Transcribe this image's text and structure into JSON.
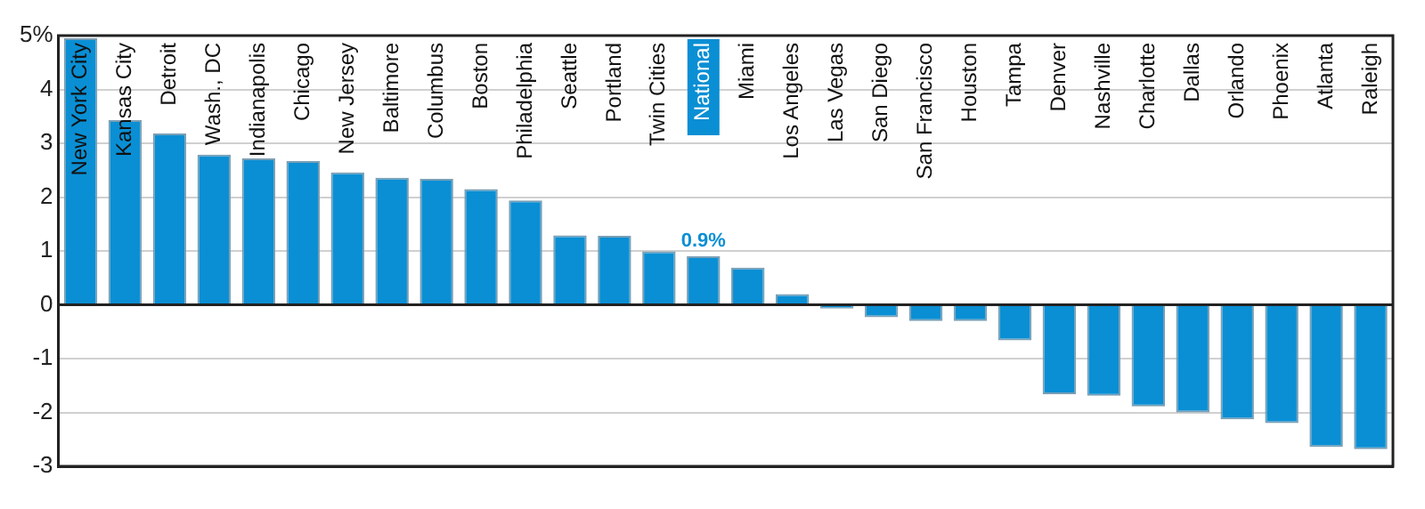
{
  "chart_data": {
    "type": "bar",
    "categories": [
      "New York City",
      "Kansas City",
      "Detroit",
      "Wash., DC",
      "Indianapolis",
      "Chicago",
      "New Jersey",
      "Baltimore",
      "Columbus",
      "Boston",
      "Philadelphia",
      "Seattle",
      "Portland",
      "Twin Cities",
      "National",
      "Miami",
      "Los Angeles",
      "Las Vegas",
      "San Diego",
      "San Francisco",
      "Houston",
      "Tampa",
      "Denver",
      "Nashville",
      "Charlotte",
      "Dallas",
      "Orlando",
      "Phoenix",
      "Atlanta",
      "Raleigh"
    ],
    "values": [
      4.95,
      3.43,
      3.18,
      2.79,
      2.72,
      2.67,
      2.46,
      2.36,
      2.34,
      2.15,
      1.94,
      1.29,
      1.28,
      0.99,
      0.9,
      0.69,
      0.2,
      -0.07,
      -0.23,
      -0.3,
      -0.3,
      -0.66,
      -1.66,
      -1.69,
      -1.89,
      -2.0,
      -2.13,
      -2.2,
      -2.64,
      -2.68
    ],
    "value_labels": [
      null,
      null,
      null,
      null,
      null,
      null,
      null,
      null,
      null,
      null,
      null,
      null,
      null,
      null,
      "0.9%",
      null,
      null,
      null,
      null,
      null,
      null,
      null,
      null,
      null,
      null,
      null,
      null,
      null,
      null,
      null
    ],
    "color": "#0a8fd4",
    "ylim": [
      -3,
      5
    ],
    "yticks": [
      -3,
      -2,
      -1,
      0,
      1,
      2,
      3,
      4,
      {
        "value": 5,
        "label": "5%"
      }
    ],
    "grid": "y",
    "legend": false
  }
}
